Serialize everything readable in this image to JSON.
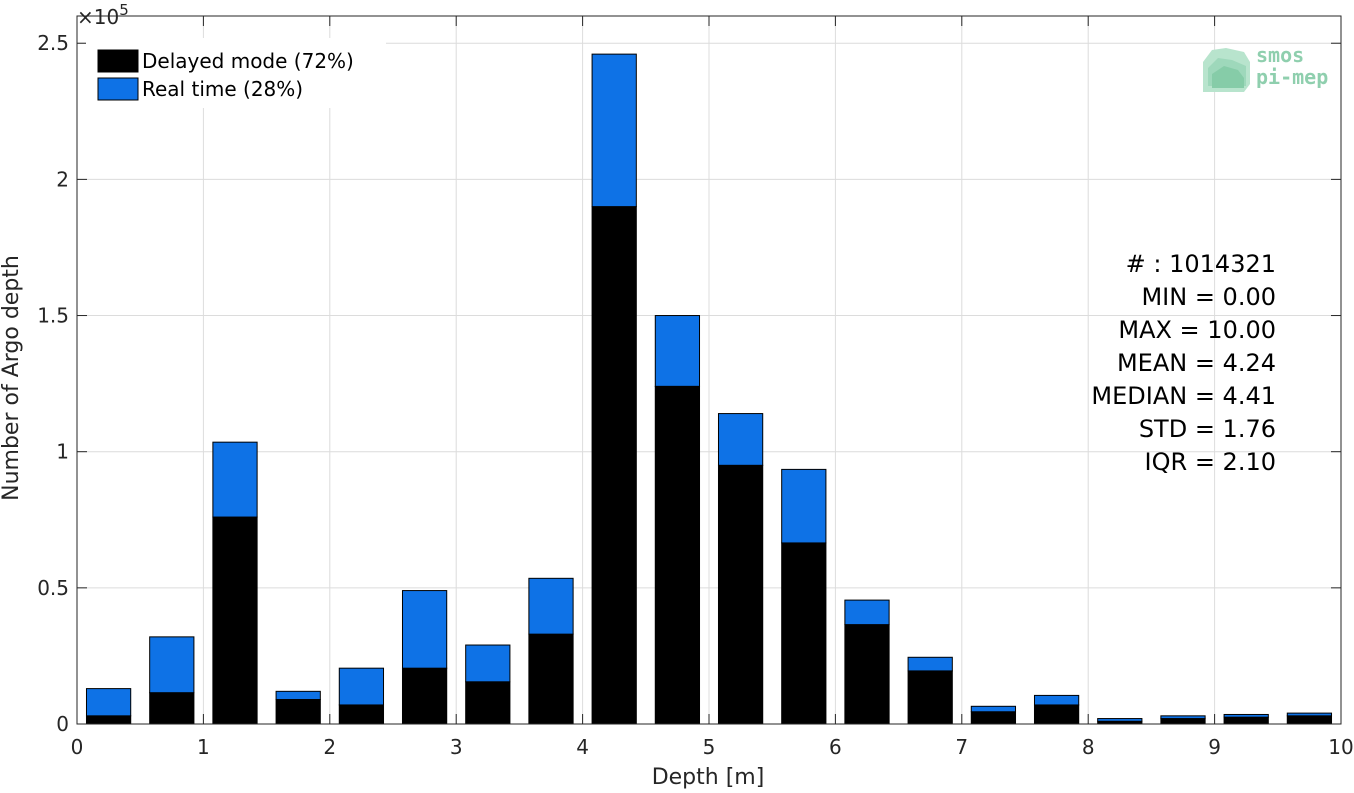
{
  "chart_data": {
    "type": "bar",
    "stacked": true,
    "xlabel": "Depth [m]",
    "ylabel": "Number of Argo depth",
    "xlim": [
      0,
      10
    ],
    "ylim": [
      0,
      260000
    ],
    "x_ticks": [
      0,
      1,
      2,
      3,
      4,
      5,
      6,
      7,
      8,
      9,
      10
    ],
    "y_ticks": [
      0,
      50000,
      100000,
      150000,
      200000,
      250000
    ],
    "y_tick_labels": [
      "0",
      "0.5",
      "1",
      "1.5",
      "2",
      "2.5"
    ],
    "y_exponent": {
      "base": "×10",
      "power": "5"
    },
    "grid": true,
    "legend_position": "top-left",
    "bin_centers": [
      0.25,
      0.75,
      1.25,
      1.75,
      2.25,
      2.75,
      3.25,
      3.75,
      4.25,
      4.75,
      5.25,
      5.75,
      6.25,
      6.75,
      7.25,
      7.75,
      8.25,
      8.75,
      9.25,
      9.75
    ],
    "series": [
      {
        "name": "Delayed mode (72%)",
        "color": "#000000",
        "values": [
          3000,
          11500,
          76000,
          9000,
          7000,
          20500,
          15500,
          33000,
          190000,
          124000,
          95000,
          66500,
          36500,
          19500,
          4500,
          7000,
          1000,
          2000,
          2500,
          3000
        ]
      },
      {
        "name": "Real time (28%)",
        "color": "#0e72e6",
        "values": [
          10000,
          20500,
          27500,
          3000,
          13500,
          28500,
          13500,
          20500,
          56000,
          26000,
          19000,
          27000,
          9000,
          5000,
          2000,
          3500,
          1000,
          1000,
          1000,
          1000
        ]
      }
    ],
    "stats_lines": [
      "# : 1014321",
      "MIN = 0.00",
      "MAX =  10.00",
      "MEAN = 4.24",
      "MEDIAN = 4.41",
      "STD = 1.76",
      "IQR = 2.10"
    ]
  },
  "logo": {
    "line1": "smos",
    "line2": "pi-mep"
  }
}
